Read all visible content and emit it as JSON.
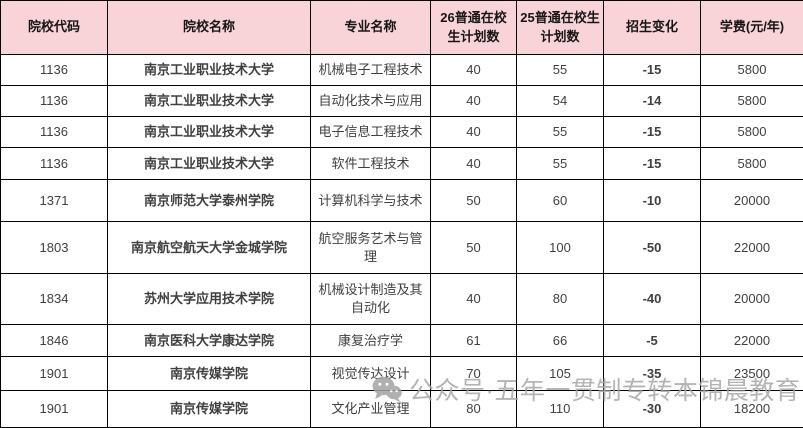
{
  "chart_data": {
    "type": "table",
    "columns": [
      "院校代码",
      "院校名称",
      "专业名称",
      "26普通在校生计划数",
      "25普通在校生计划数",
      "招生变化",
      "学费(元/年)"
    ],
    "rows": [
      [
        "1136",
        "南京工业职业技术大学",
        "机械电子工程技术",
        "40",
        "55",
        "-15",
        "5800"
      ],
      [
        "1136",
        "南京工业职业技术大学",
        "自动化技术与应用",
        "40",
        "54",
        "-14",
        "5800"
      ],
      [
        "1136",
        "南京工业职业技术大学",
        "电子信息工程技术",
        "40",
        "55",
        "-15",
        "5800"
      ],
      [
        "1136",
        "南京工业职业技术大学",
        "软件工程技术",
        "40",
        "55",
        "-15",
        "5800"
      ],
      [
        "1371",
        "南京师范大学泰州学院",
        "计算机科学与技术",
        "50",
        "60",
        "-10",
        "20000"
      ],
      [
        "1803",
        "南京航空航天大学金城学院",
        "航空服务艺术与管理",
        "50",
        "100",
        "-50",
        "22000"
      ],
      [
        "1834",
        "苏州大学应用技术学院",
        "机械设计制造及其自动化",
        "40",
        "80",
        "-40",
        "20000"
      ],
      [
        "1846",
        "南京医科大学康达学院",
        "康复治疗学",
        "61",
        "66",
        "-5",
        "22000"
      ],
      [
        "1901",
        "南京传媒学院",
        "视觉传达设计",
        "70",
        "105",
        "-35",
        "23500"
      ],
      [
        "1901",
        "南京传媒学院",
        "文化产业管理",
        "80",
        "110",
        "-30",
        "18200"
      ]
    ]
  },
  "watermark": {
    "icon": "wechat-icon",
    "text": "公众号·五年一贯制专转本锦晨教育"
  },
  "colors": {
    "header_bg": "#f8d4d9",
    "border": "#000000",
    "negative_value": "#f25b62",
    "watermark_gray": "#a8a8a8"
  }
}
